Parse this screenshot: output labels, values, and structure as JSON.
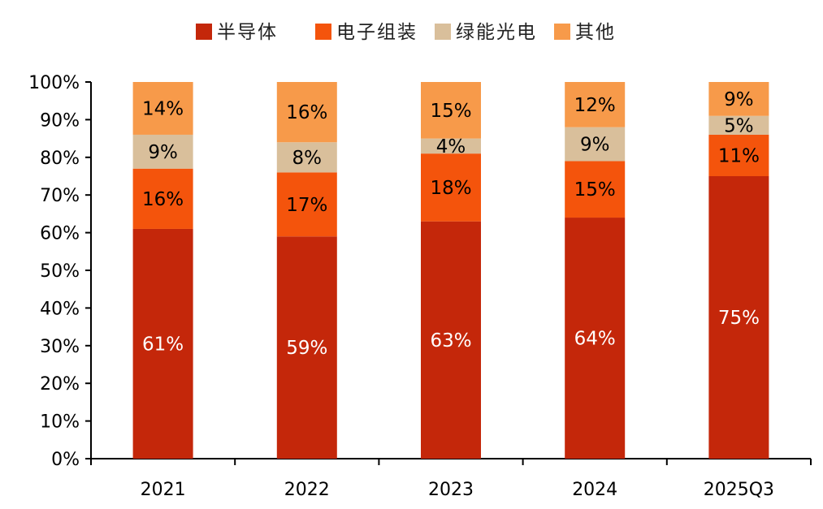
{
  "chart_data": {
    "type": "bar",
    "stacked": true,
    "categories": [
      "2021",
      "2022",
      "2023",
      "2024",
      "2025Q3"
    ],
    "series": [
      {
        "name": "半导体",
        "color": "#c4270a",
        "label_color": "#ffffff",
        "values": [
          61,
          59,
          63,
          64,
          75
        ],
        "labels": [
          "61%",
          "59%",
          "63%",
          "64%",
          "75%"
        ]
      },
      {
        "name": "电子组装",
        "color": "#f4540c",
        "label_color": "#000000",
        "values": [
          16,
          17,
          18,
          15,
          11
        ],
        "labels": [
          "16%",
          "17%",
          "18%",
          "15%",
          "11%"
        ]
      },
      {
        "name": "绿能光电",
        "color": "#d9bf9b",
        "label_color": "#000000",
        "values": [
          9,
          8,
          4,
          9,
          5
        ],
        "labels": [
          "9%",
          "8%",
          "4%",
          "9%",
          "5%"
        ]
      },
      {
        "name": "其他",
        "color": "#f79a4a",
        "label_color": "#000000",
        "values": [
          14,
          16,
          15,
          12,
          9
        ],
        "labels": [
          "14%",
          "16%",
          "15%",
          "12%",
          "9%"
        ]
      }
    ],
    "y_ticks": [
      "0%",
      "10%",
      "20%",
      "30%",
      "40%",
      "50%",
      "60%",
      "70%",
      "80%",
      "90%",
      "100%"
    ],
    "ylim": [
      0,
      100
    ],
    "legend_position": "top",
    "grid": false
  }
}
